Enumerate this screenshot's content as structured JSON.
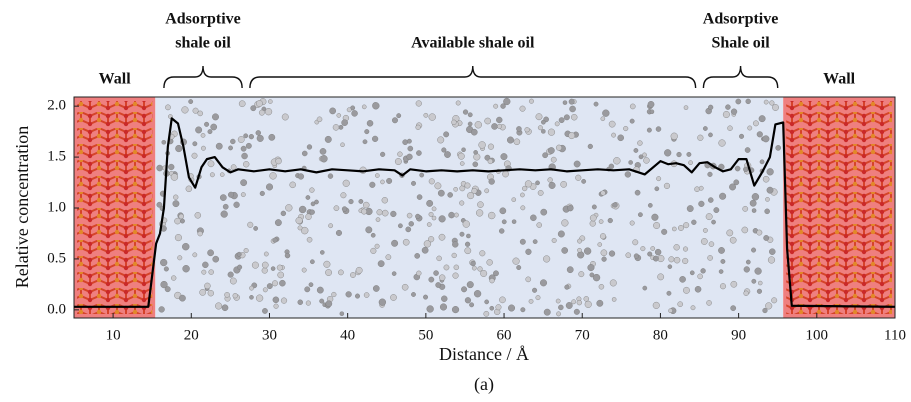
{
  "chart_data": {
    "type": "line",
    "xlabel": "Distance / Å",
    "ylabel": "Relative concentration",
    "caption": "(a)",
    "xlim": [
      5,
      110
    ],
    "ylim": [
      -0.08,
      2.09
    ],
    "xticks": [
      10,
      20,
      30,
      40,
      50,
      60,
      70,
      80,
      90,
      100,
      110
    ],
    "yticks": [
      {
        "value": 0,
        "label": "0.0"
      },
      {
        "value": 0.5,
        "label": "0.5"
      },
      {
        "value": 1,
        "label": "1.0"
      },
      {
        "value": 1.5,
        "label": "1.5"
      },
      {
        "value": 2,
        "label": "2.0"
      }
    ],
    "regions": [
      {
        "label": "Wall",
        "xrange": [
          5,
          15.4
        ],
        "color": "#ef7f7f"
      },
      {
        "xrange": [
          15.4,
          95.7
        ],
        "color": "#dfe6f3"
      },
      {
        "label": "Wall",
        "xrange": [
          95.7,
          110
        ],
        "color": "#ef7f7f"
      }
    ],
    "braces": [
      {
        "text": [
          "Adsorptive",
          "shale oil"
        ],
        "span": [
          16.5,
          26.5
        ]
      },
      {
        "text": [
          "Available shale oil"
        ],
        "span": [
          27.5,
          84.5
        ]
      },
      {
        "text": [
          "Adsorptive",
          "Shale oil"
        ],
        "span": [
          85.5,
          95
        ]
      }
    ],
    "series": [
      {
        "color": "#000000",
        "x": [
          5,
          14.5,
          15.5,
          16,
          16.5,
          17,
          17.5,
          18.3,
          19,
          19.7,
          20.5,
          21.3,
          22,
          23,
          24,
          25,
          26,
          28,
          30,
          32,
          34,
          36,
          38,
          40,
          42,
          44,
          46,
          47,
          48,
          50,
          52,
          54,
          56,
          58,
          60,
          62,
          64,
          66,
          68,
          70,
          72,
          74,
          76,
          78,
          80,
          81,
          82,
          83,
          84,
          85,
          86,
          87,
          88,
          89,
          90,
          91,
          92,
          93,
          94,
          94.7,
          95.7,
          96.2,
          96.8,
          110
        ],
        "values": [
          0.03,
          0.03,
          0.65,
          0.75,
          1.0,
          1.6,
          1.88,
          1.83,
          1.6,
          1.3,
          1.2,
          1.4,
          1.48,
          1.5,
          1.4,
          1.35,
          1.38,
          1.36,
          1.38,
          1.36,
          1.38,
          1.35,
          1.38,
          1.37,
          1.36,
          1.38,
          1.37,
          1.32,
          1.38,
          1.36,
          1.37,
          1.36,
          1.37,
          1.36,
          1.37,
          1.38,
          1.37,
          1.38,
          1.36,
          1.37,
          1.38,
          1.37,
          1.38,
          1.33,
          1.46,
          1.43,
          1.44,
          1.42,
          1.35,
          1.44,
          1.45,
          1.4,
          1.36,
          1.38,
          1.48,
          1.48,
          1.22,
          1.35,
          1.5,
          1.82,
          1.84,
          0.6,
          0.04,
          0.03
        ]
      }
    ]
  }
}
